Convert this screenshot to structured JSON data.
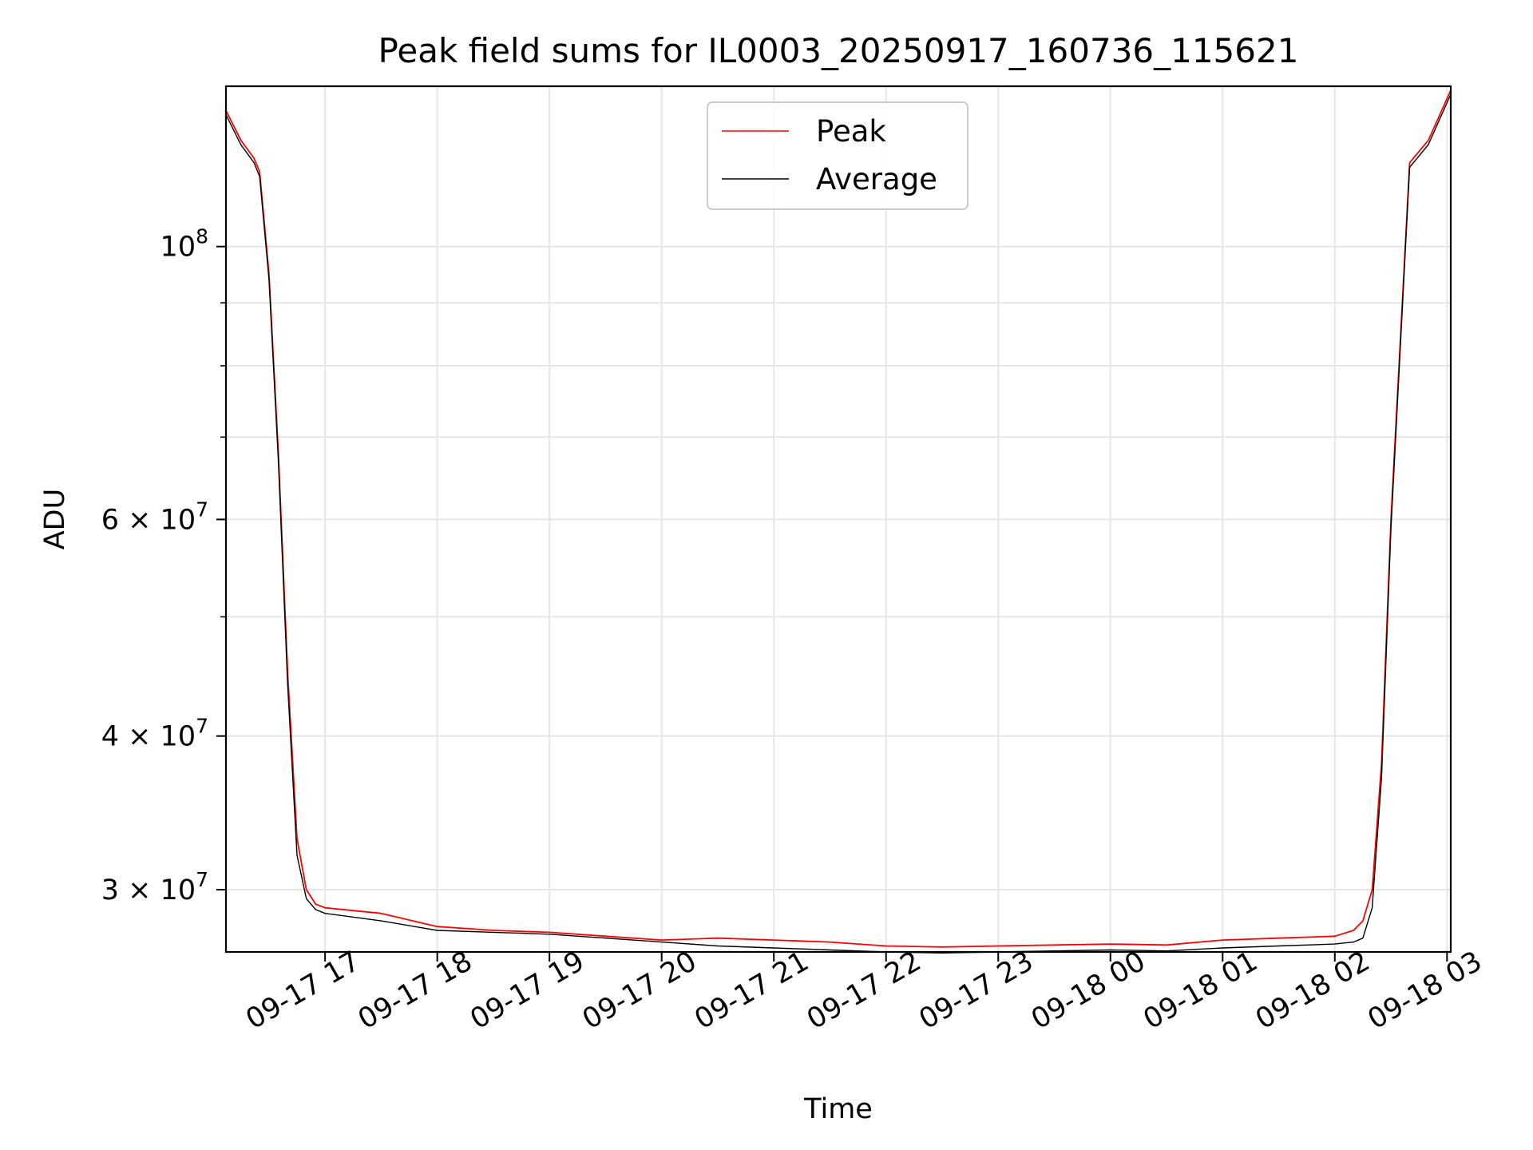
{
  "chart_data": {
    "type": "line",
    "title": "Peak field sums for IL0003_20250917_160736_115621",
    "xlabel": "Time",
    "ylabel": "ADU",
    "yscale": "log",
    "grid": true,
    "legend_position": "top-center",
    "xlim": [
      "2025-09-17 16:07",
      "2025-09-18 03:02"
    ],
    "ylim": [
      26700000,
      135000000
    ],
    "x_ticks": [
      "09-17 17",
      "09-17 18",
      "09-17 19",
      "09-17 20",
      "09-17 21",
      "09-17 22",
      "09-17 23",
      "09-18 00",
      "09-18 01",
      "09-18 02",
      "09-18 03"
    ],
    "x_tick_times": [
      "2025-09-17 17:00",
      "2025-09-17 18:00",
      "2025-09-17 19:00",
      "2025-09-17 20:00",
      "2025-09-17 21:00",
      "2025-09-17 22:00",
      "2025-09-17 23:00",
      "2025-09-18 00:00",
      "2025-09-18 01:00",
      "2025-09-18 02:00",
      "2025-09-18 03:00"
    ],
    "y_ticks": [
      {
        "value": 100000000,
        "label": "10^8"
      },
      {
        "value": 60000000,
        "label": "6 × 10^7"
      },
      {
        "value": 40000000,
        "label": "4 × 10^7"
      },
      {
        "value": 30000000,
        "label": "3 × 10^7"
      }
    ],
    "y_minor_grid": [
      50000000,
      70000000,
      80000000,
      90000000
    ],
    "series": [
      {
        "name": "Peak",
        "color": "#ff0000",
        "x": [
          "2025-09-17 16:07",
          "2025-09-17 16:15",
          "2025-09-17 16:22",
          "2025-09-17 16:25",
          "2025-09-17 16:30",
          "2025-09-17 16:35",
          "2025-09-17 16:40",
          "2025-09-17 16:45",
          "2025-09-17 16:50",
          "2025-09-17 16:55",
          "2025-09-17 17:00",
          "2025-09-17 17:30",
          "2025-09-17 18:00",
          "2025-09-17 18:30",
          "2025-09-17 19:00",
          "2025-09-17 19:30",
          "2025-09-17 20:00",
          "2025-09-17 20:30",
          "2025-09-17 21:00",
          "2025-09-17 21:30",
          "2025-09-17 22:00",
          "2025-09-17 22:30",
          "2025-09-17 23:00",
          "2025-09-17 23:30",
          "2025-09-18 00:00",
          "2025-09-18 00:30",
          "2025-09-18 01:00",
          "2025-09-18 01:30",
          "2025-09-18 02:00",
          "2025-09-18 02:10",
          "2025-09-18 02:15",
          "2025-09-18 02:20",
          "2025-09-18 02:25",
          "2025-09-18 02:30",
          "2025-09-18 02:40",
          "2025-09-18 02:50",
          "2025-09-18 03:02"
        ],
        "y": [
          129000000,
          122000000,
          118000000,
          115000000,
          95000000,
          68000000,
          45000000,
          33000000,
          30000000,
          29200000,
          29000000,
          28700000,
          28000000,
          27800000,
          27700000,
          27500000,
          27300000,
          27400000,
          27300000,
          27200000,
          27000000,
          26950000,
          27000000,
          27050000,
          27100000,
          27050000,
          27300000,
          27400000,
          27500000,
          27800000,
          28300000,
          30000000,
          38000000,
          60000000,
          117000000,
          122000000,
          134000000
        ]
      },
      {
        "name": "Average",
        "color": "#000000",
        "x": [
          "2025-09-17 16:07",
          "2025-09-17 16:15",
          "2025-09-17 16:22",
          "2025-09-17 16:25",
          "2025-09-17 16:30",
          "2025-09-17 16:35",
          "2025-09-17 16:40",
          "2025-09-17 16:45",
          "2025-09-17 16:50",
          "2025-09-17 16:55",
          "2025-09-17 17:00",
          "2025-09-17 17:30",
          "2025-09-17 18:00",
          "2025-09-17 18:30",
          "2025-09-17 19:00",
          "2025-09-17 19:30",
          "2025-09-17 20:00",
          "2025-09-17 20:30",
          "2025-09-17 21:00",
          "2025-09-17 21:30",
          "2025-09-17 22:00",
          "2025-09-17 22:30",
          "2025-09-17 23:00",
          "2025-09-17 23:30",
          "2025-09-18 00:00",
          "2025-09-18 00:30",
          "2025-09-18 01:00",
          "2025-09-18 01:30",
          "2025-09-18 02:00",
          "2025-09-18 02:10",
          "2025-09-18 02:15",
          "2025-09-18 02:20",
          "2025-09-18 02:25",
          "2025-09-18 02:30",
          "2025-09-18 02:40",
          "2025-09-18 02:50",
          "2025-09-18 03:02"
        ],
        "y": [
          128000000,
          121000000,
          117000000,
          114000000,
          94000000,
          67000000,
          44000000,
          32000000,
          29500000,
          28900000,
          28700000,
          28300000,
          27800000,
          27700000,
          27600000,
          27400000,
          27200000,
          27000000,
          26900000,
          26800000,
          26700000,
          26650000,
          26700000,
          26750000,
          26800000,
          26750000,
          26900000,
          27000000,
          27100000,
          27200000,
          27400000,
          29000000,
          37000000,
          59000000,
          116000000,
          121000000,
          133000000
        ]
      }
    ]
  }
}
